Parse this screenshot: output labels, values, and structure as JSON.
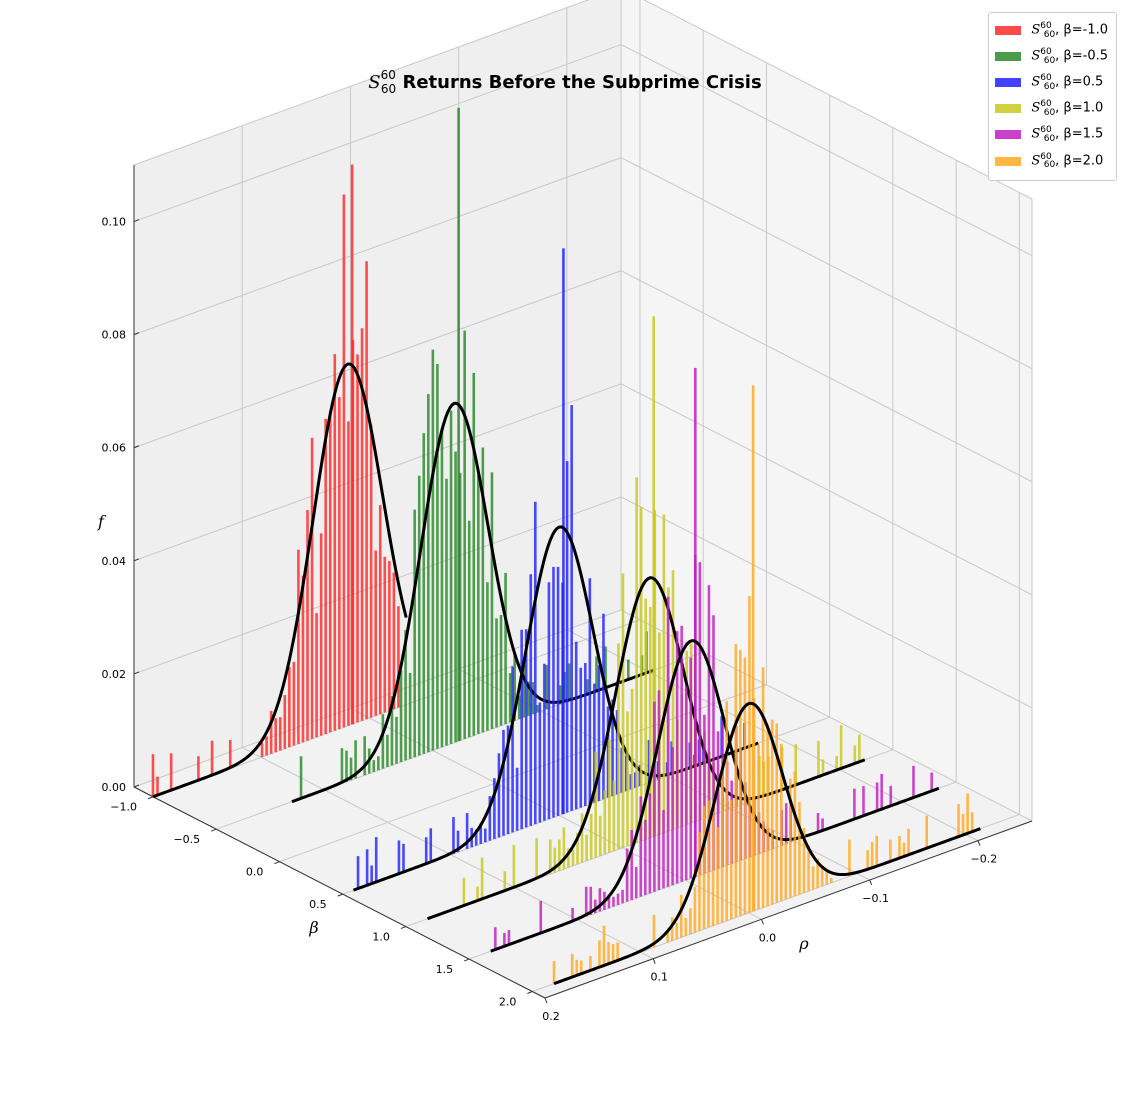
{
  "chart_data": {
    "type": "3d-bar-histogram",
    "title_symbol": "S",
    "title_sub": "60",
    "title_sup": "60",
    "title_rest": " Returns Before the Subprime Crisis",
    "xlabel": "ρ",
    "ylabel": "β",
    "zlabel": "f",
    "xlim": [
      0.2,
      -0.25
    ],
    "ylim": [
      -1.15,
      2.1
    ],
    "zlim": [
      0,
      0.11
    ],
    "xticks": [
      0.2,
      0.1,
      0.0,
      -0.1,
      -0.2
    ],
    "xtick_labels": [
      "0.2",
      "0.1",
      "0.0",
      "−0.1",
      "−0.2"
    ],
    "yticks": [
      -1.0,
      -0.5,
      0.0,
      0.5,
      1.0,
      1.5,
      2.0
    ],
    "ytick_labels": [
      "−1.0",
      "−0.5",
      "0.0",
      "0.5",
      "1.0",
      "1.5",
      "2.0"
    ],
    "zticks": [
      0.0,
      0.02,
      0.04,
      0.06,
      0.08,
      0.1
    ],
    "ztick_labels": [
      "0.00",
      "0.02",
      "0.04",
      "0.06",
      "0.08",
      "0.10"
    ],
    "grid": true,
    "legend_position": "top-right",
    "series": [
      {
        "name": "β=-1.0",
        "beta": -1.0,
        "color": "#ff2a2a",
        "peak_rho": 0.02,
        "sigma": 0.032,
        "fit_peak": 0.064,
        "hist_max": 0.099,
        "rho_min": 0.2,
        "rho_max": -0.03
      },
      {
        "name": "β=-0.5",
        "beta": -0.5,
        "color": "#2a8a2a",
        "peak_rho": -0.02,
        "sigma": 0.031,
        "fit_peak": 0.06,
        "hist_max": 0.112,
        "rho_min": 0.13,
        "rho_max": -0.2
      },
      {
        "name": "β=0.5",
        "beta": 0.5,
        "color": "#2222ff",
        "peak_rho": 0.0,
        "sigma": 0.031,
        "fit_peak": 0.051,
        "hist_max": 0.1,
        "rho_min": 0.19,
        "rho_max": -0.18
      },
      {
        "name": "β=1.0",
        "beta": 1.0,
        "color": "#c8c81e",
        "peak_rho": -0.025,
        "sigma": 0.031,
        "fit_peak": 0.046,
        "hist_max": 0.092,
        "rho_min": 0.18,
        "rho_max": -0.22
      },
      {
        "name": "β=1.5",
        "beta": 1.5,
        "color": "#c020c0",
        "peak_rho": -0.005,
        "sigma": 0.031,
        "fit_peak": 0.042,
        "hist_max": 0.09,
        "rho_min": 0.18,
        "rho_max": -0.23
      },
      {
        "name": "β=2.0",
        "beta": 2.0,
        "color": "#ffaa22",
        "peak_rho": 0.0,
        "sigma": 0.031,
        "fit_peak": 0.037,
        "hist_max": 0.093,
        "rho_min": 0.18,
        "rho_max": -0.21
      }
    ]
  }
}
